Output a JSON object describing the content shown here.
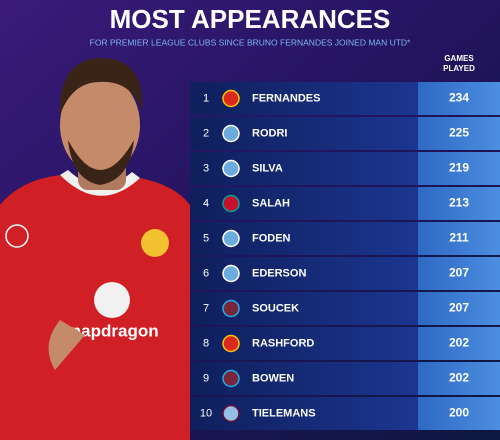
{
  "header": {
    "title": "MOST APPEARANCES",
    "subtitle": "FOR PREMIER LEAGUE CLUBS SINCE BRUNO FERNANDES JOINED MAN UTD*"
  },
  "table": {
    "column_header": "GAMES PLAYED",
    "rows": [
      {
        "rank": 1,
        "name": "FERNANDES",
        "games": 234
      },
      {
        "rank": 2,
        "name": "RODRI",
        "games": 225
      },
      {
        "rank": 3,
        "name": "SILVA",
        "games": 219
      },
      {
        "rank": 4,
        "name": "SALAH",
        "games": 213
      },
      {
        "rank": 5,
        "name": "FODEN",
        "games": 211
      },
      {
        "rank": 6,
        "name": "EDERSON",
        "games": 207
      },
      {
        "rank": 7,
        "name": "SOUCEK",
        "games": 207
      },
      {
        "rank": 8,
        "name": "RASHFORD",
        "games": 202
      },
      {
        "rank": 9,
        "name": "BOWEN",
        "games": 202
      },
      {
        "rank": 10,
        "name": "TIELEMANS",
        "games": 200
      }
    ]
  }
}
